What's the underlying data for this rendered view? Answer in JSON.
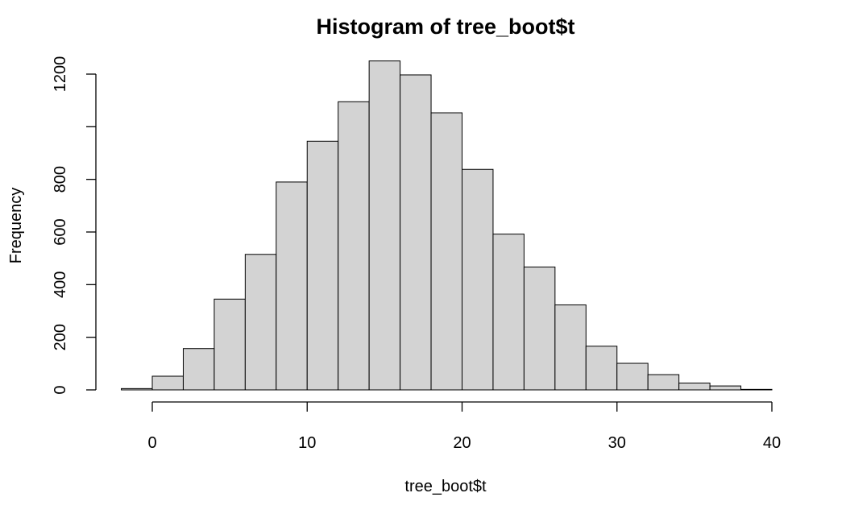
{
  "chart_data": {
    "type": "bar",
    "title": "Histogram of tree_boot$t",
    "xlabel": "tree_boot$t",
    "ylabel": "Frequency",
    "bar_color": "#d3d3d3",
    "bar_edge_color": "#000000",
    "bins": [
      {
        "x0": -2,
        "x1": 0,
        "count": 5
      },
      {
        "x0": 0,
        "x1": 2,
        "count": 52
      },
      {
        "x0": 2,
        "x1": 4,
        "count": 157
      },
      {
        "x0": 4,
        "x1": 6,
        "count": 345
      },
      {
        "x0": 6,
        "x1": 8,
        "count": 515
      },
      {
        "x0": 8,
        "x1": 10,
        "count": 790
      },
      {
        "x0": 10,
        "x1": 12,
        "count": 945
      },
      {
        "x0": 12,
        "x1": 14,
        "count": 1095
      },
      {
        "x0": 14,
        "x1": 16,
        "count": 1250
      },
      {
        "x0": 16,
        "x1": 18,
        "count": 1197
      },
      {
        "x0": 18,
        "x1": 20,
        "count": 1053
      },
      {
        "x0": 20,
        "x1": 22,
        "count": 838
      },
      {
        "x0": 22,
        "x1": 24,
        "count": 592
      },
      {
        "x0": 24,
        "x1": 26,
        "count": 467
      },
      {
        "x0": 26,
        "x1": 28,
        "count": 323
      },
      {
        "x0": 28,
        "x1": 30,
        "count": 166
      },
      {
        "x0": 30,
        "x1": 32,
        "count": 101
      },
      {
        "x0": 32,
        "x1": 34,
        "count": 58
      },
      {
        "x0": 34,
        "x1": 36,
        "count": 26
      },
      {
        "x0": 36,
        "x1": 38,
        "count": 15
      },
      {
        "x0": 38,
        "x1": 40,
        "count": 2
      }
    ],
    "x_ticks": [
      0,
      10,
      20,
      30,
      40
    ],
    "x_tick_labels": [
      "0",
      "10",
      "20",
      "30",
      "40"
    ],
    "y_ticks": [
      0,
      200,
      400,
      600,
      800,
      1000,
      1200
    ],
    "y_tick_labels": [
      "0",
      "200",
      "400",
      "600",
      "800",
      "",
      "1200"
    ],
    "xlim": [
      -2,
      40
    ],
    "ylim": [
      0,
      1250
    ],
    "grid": false,
    "legend": "none"
  }
}
